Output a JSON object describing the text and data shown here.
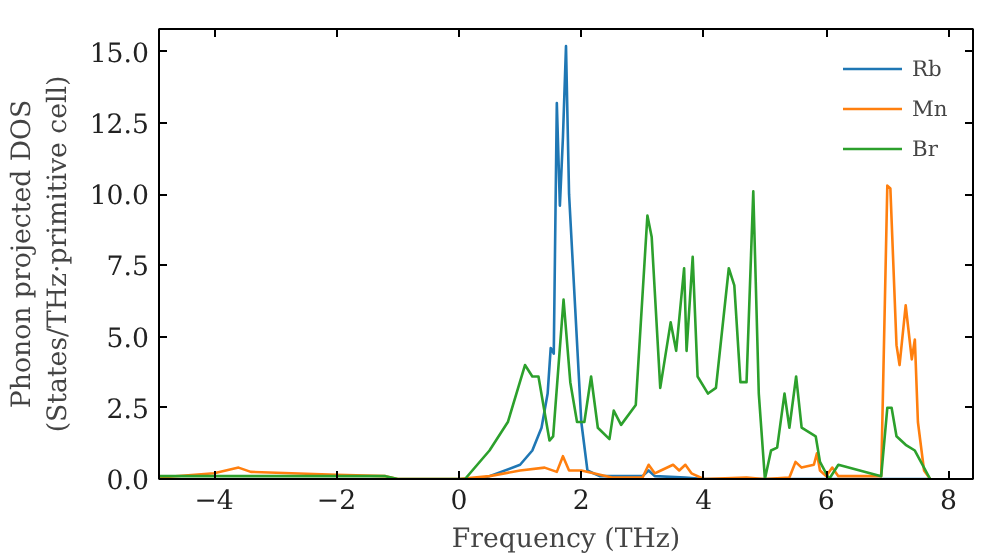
{
  "chart_data": {
    "type": "line",
    "xlabel": "Frequency (THz)",
    "ylabel": "Phonon projected DOS\n(States/THz·primitive cell)",
    "xlim": [
      -4.9,
      8.4
    ],
    "ylim": [
      0,
      15.8
    ],
    "xticks": [
      -4,
      -2,
      0,
      2,
      4,
      6,
      8
    ],
    "yticks": [
      {
        "value": 0,
        "label": "0.0"
      },
      {
        "value": 2.5,
        "label": "2.5"
      },
      {
        "value": 5,
        "label": "5.0"
      },
      {
        "value": 7.5,
        "label": "7.5"
      },
      {
        "value": 10,
        "label": "10.0"
      },
      {
        "value": 12.5,
        "label": "12.5"
      },
      {
        "value": 15,
        "label": "15.0"
      }
    ],
    "legend": "top right",
    "grid": false,
    "series": [
      {
        "name": "Rb",
        "color": "#1f77b4",
        "x": [
          0.3,
          0.5,
          1.0,
          1.2,
          1.35,
          1.45,
          1.5,
          1.55,
          1.6,
          1.65,
          1.7,
          1.75,
          1.8,
          1.9,
          2.0,
          2.1,
          2.3,
          3.0,
          3.1,
          3.2,
          3.7,
          4.0,
          7.7
        ],
        "values": [
          0,
          0.1,
          0.5,
          1.0,
          1.8,
          3.0,
          4.6,
          4.4,
          13.2,
          9.6,
          12.0,
          15.2,
          10.0,
          6.0,
          2.0,
          0.3,
          0.1,
          0.1,
          0.3,
          0.1,
          0.05,
          0,
          0
        ]
      },
      {
        "name": "Mn",
        "color": "#ff7f0e",
        "x": [
          -4.9,
          -4.0,
          -3.6,
          -3.4,
          -2.0,
          -1.2,
          -1.0,
          0,
          0.5,
          1.0,
          1.4,
          1.6,
          1.7,
          1.8,
          2.0,
          2.2,
          2.5,
          3.0,
          3.1,
          3.2,
          3.3,
          3.5,
          3.6,
          3.7,
          3.8,
          4.0,
          4.7,
          5.0,
          5.4,
          5.5,
          5.6,
          5.8,
          5.85,
          5.9,
          6.0,
          6.1,
          6.2,
          6.9,
          7.0,
          7.05,
          7.15,
          7.2,
          7.3,
          7.4,
          7.45,
          7.5,
          7.6,
          7.7
        ],
        "values": [
          0.05,
          0.2,
          0.4,
          0.25,
          0.15,
          0.1,
          0,
          0,
          0.1,
          0.3,
          0.4,
          0.25,
          0.8,
          0.3,
          0.3,
          0.2,
          0.05,
          0.05,
          0.5,
          0.2,
          0.3,
          0.5,
          0.3,
          0.5,
          0.2,
          0,
          0.05,
          0,
          0.05,
          0.6,
          0.4,
          0.5,
          0.9,
          0.3,
          0.1,
          0.4,
          0.1,
          0.1,
          10.3,
          10.2,
          4.7,
          4.0,
          6.1,
          4.2,
          4.9,
          2.0,
          0.3,
          0
        ]
      },
      {
        "name": "Br",
        "color": "#2ca02c",
        "x": [
          -4.9,
          -1.2,
          -1.0,
          0.1,
          0.5,
          0.8,
          1.08,
          1.2,
          1.3,
          1.48,
          1.54,
          1.71,
          1.82,
          1.93,
          2.05,
          2.16,
          2.27,
          2.46,
          2.53,
          2.65,
          2.89,
          3.08,
          3.15,
          3.29,
          3.46,
          3.55,
          3.68,
          3.72,
          3.82,
          3.9,
          4.07,
          4.2,
          4.41,
          4.5,
          4.6,
          4.7,
          4.81,
          4.9,
          5.0,
          5.1,
          5.2,
          5.32,
          5.4,
          5.51,
          5.6,
          5.83,
          5.9,
          6.05,
          6.2,
          6.9,
          7.0,
          7.07,
          7.15,
          7.3,
          7.45,
          7.7
        ],
        "values": [
          0.1,
          0.1,
          0,
          0,
          1.0,
          2.0,
          4.0,
          3.6,
          3.6,
          1.35,
          1.5,
          6.3,
          3.4,
          2.0,
          2.0,
          3.6,
          1.8,
          1.4,
          2.4,
          1.9,
          2.6,
          9.25,
          8.5,
          3.2,
          5.5,
          4.5,
          7.4,
          4.5,
          7.8,
          3.6,
          3.0,
          3.2,
          7.4,
          6.8,
          3.4,
          3.4,
          10.1,
          3.0,
          0,
          1.0,
          1.1,
          3.0,
          1.8,
          3.6,
          1.8,
          1.5,
          0.6,
          0,
          0.5,
          0.1,
          2.5,
          2.5,
          1.5,
          1.2,
          1.0,
          0
        ]
      }
    ]
  }
}
